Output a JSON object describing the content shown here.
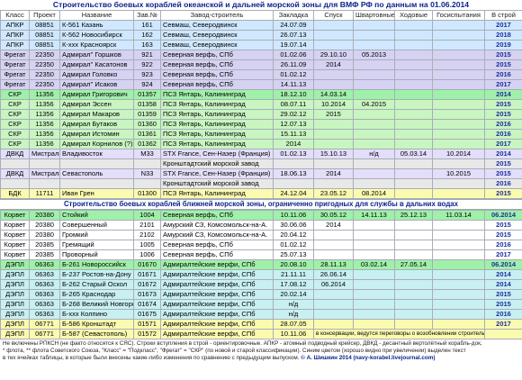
{
  "title": "Строительство боевых кораблей океанской и дальней морской зоны для ВМФ РФ по данным на 01.06.2014",
  "columns": [
    "Класс",
    "Проект",
    "Название",
    "Зав.№",
    "Завод-строитель",
    "Закладка",
    "Спуск",
    "Швартовные",
    "Ходовые",
    "Госиспытания",
    "В строй"
  ],
  "rows1": [
    {
      "style": "blue",
      "cells": [
        "АПКР",
        "08851",
        "К-561 Казань",
        "161",
        "Севмаш, Северодвинск",
        "24.07.09",
        "",
        "",
        "",
        "",
        "2017"
      ]
    },
    {
      "style": "blue",
      "cells": [
        "АПКР",
        "08851",
        "К-562 Новосибирск",
        "162",
        "Севмаш, Северодвинск",
        "26.07.13",
        "",
        "",
        "",
        "",
        "2018"
      ]
    },
    {
      "style": "blue",
      "cells": [
        "АПКР",
        "08851",
        "К-ххх Красноярск",
        "163",
        "Севмаш, Северодвинск",
        "19.07.14",
        "",
        "",
        "",
        "",
        "2019"
      ]
    },
    {
      "style": "purple",
      "cells": [
        "Фрегат",
        "22350",
        "Адмирал'' Горшков",
        "921",
        "Северная верфь, СПб",
        "01.02.06",
        "29.10.10",
        "05.2013",
        "",
        "",
        "2015"
      ]
    },
    {
      "style": "purple",
      "cells": [
        "Фрегат",
        "22350",
        "Адмирал'' Касатонов",
        "922",
        "Северная верфь, СПб",
        "26.11.09",
        "2014",
        "",
        "",
        "",
        "2015"
      ]
    },
    {
      "style": "purple",
      "cells": [
        "Фрегат",
        "22350",
        "Адмирал Головко",
        "923",
        "Северная верфь, СПб",
        "01.02.12",
        "",
        "",
        "",
        "",
        "2016"
      ]
    },
    {
      "style": "purple",
      "cells": [
        "Фрегат",
        "22350",
        "Адмирал'' Исаков",
        "924",
        "Северная верфь, СПб",
        "14.11.13",
        "",
        "",
        "",
        "",
        "2017"
      ]
    },
    {
      "style": "green",
      "cells": [
        "СКР",
        "11356",
        "Адмирал Григорович",
        "01357",
        "ПСЗ Янтарь, Калининград",
        "18.12.10",
        "14.03.14",
        "",
        "",
        "",
        "2014"
      ]
    },
    {
      "style": "greenlt",
      "cells": [
        "СКР",
        "11356",
        "Адмирал Эссен",
        "01358",
        "ПСЗ Янтарь, Калининград",
        "08.07.11",
        "10.2014",
        "04.2015",
        "",
        "",
        "2015"
      ]
    },
    {
      "style": "greenlt",
      "cells": [
        "СКР",
        "11356",
        "Адмирал Макаров",
        "01359",
        "ПСЗ Янтарь, Калининград",
        "29.02.12",
        "2015",
        "",
        "",
        "",
        "2015"
      ]
    },
    {
      "style": "greenlt",
      "cells": [
        "СКР",
        "11356",
        "Адмирал Бутаков",
        "01360",
        "ПСЗ Янтарь, Калининград",
        "12.07.13",
        "",
        "",
        "",
        "",
        "2016"
      ]
    },
    {
      "style": "greenlt",
      "cells": [
        "СКР",
        "11356",
        "Адмирал Истомин",
        "01361",
        "ПСЗ Янтарь, Калининград",
        "15.11.13",
        "",
        "",
        "",
        "",
        "2016"
      ]
    },
    {
      "style": "greenlt",
      "cells": [
        "СКР",
        "11356",
        "Адмирал Корнилов (?)",
        "01362",
        "ПСЗ Янтарь, Калининград",
        "2014",
        "",
        "",
        "",
        "",
        "2017"
      ]
    },
    {
      "style": "lilac",
      "cells": [
        "ДВКД",
        "Мистраль",
        "Владивосток",
        "М33",
        "STX France, Сен-Назер (Франция)",
        "01.02.13",
        "15.10.13",
        "н/д",
        "05.03.14",
        "10.2014",
        "2014"
      ]
    },
    {
      "style": "gray",
      "cells": [
        "",
        "",
        "",
        "",
        "Кронштадтский морской завод",
        "",
        "",
        "",
        "",
        "",
        "2015"
      ]
    },
    {
      "style": "lilac",
      "cells": [
        "ДВКД",
        "Мистраль",
        "Севастополь",
        "N33",
        "STX France, Сен-Назер (Франция)",
        "18.06.13",
        "2014",
        "",
        "",
        "10.2015",
        "2015"
      ]
    },
    {
      "style": "gray",
      "cells": [
        "",
        "",
        "",
        "",
        "Кронштадтский морской завод",
        "",
        "",
        "",
        "",
        "",
        "2016"
      ]
    },
    {
      "style": "yellow",
      "cells": [
        "БДК",
        "11711",
        "Иван Грен",
        "01300",
        "ПСЗ Янтарь, Калининград",
        "24.12.04",
        "23.05.12",
        "08.2014",
        "",
        "",
        "2015"
      ]
    }
  ],
  "section2_title": "Строительство боевых кораблей ближней морской зоны, ограниченно пригодных для службы в дальних водах",
  "rows2": [
    {
      "style": "green",
      "cells": [
        "Корвет",
        "20380",
        "Стойкий",
        "1004",
        "Северная верфь, СПб",
        "10.11.06",
        "30.05.12",
        "14.11.13",
        "25.12.13",
        "11.03.14",
        "06.2014"
      ]
    },
    {
      "style": "white",
      "cells": [
        "Корвет",
        "20380",
        "Совершенный",
        "2101",
        "Амурский СЗ, Комсомольск-на-А.",
        "30.06.06",
        "2014",
        "",
        "",
        "",
        "2015"
      ]
    },
    {
      "style": "white",
      "cells": [
        "Корвет",
        "20380",
        "Громкий",
        "2102",
        "Амурский СЗ, Комсомольск-на-А.",
        "20.04.12",
        "",
        "",
        "",
        "",
        "2015"
      ]
    },
    {
      "style": "white",
      "cells": [
        "Корвет",
        "20385",
        "Гремящий",
        "1005",
        "Северная верфь, СПб",
        "01.02.12",
        "",
        "",
        "",
        "",
        "2016"
      ]
    },
    {
      "style": "white",
      "cells": [
        "Корвет",
        "20385",
        "Проворный",
        "1006",
        "Северная верфь, СПб",
        "25.07.13",
        "",
        "",
        "",
        "",
        "2017"
      ]
    },
    {
      "style": "green",
      "cells": [
        "ДЭПЛ",
        "06363",
        "Б-261 Новороссийск",
        "01670",
        "Адмиралтейские верфи, СПб",
        "20.08.10",
        "28.11.13",
        "03.02.14",
        "27.05.14",
        "",
        "06.2014"
      ]
    },
    {
      "style": "cyan",
      "cells": [
        "ДЭПЛ",
        "06363",
        "Б-237 Ростов-на-Дону",
        "01671",
        "Адмиралтейские верфи, СПб",
        "21.11.11",
        "26.06.14",
        "",
        "",
        "",
        "2014"
      ]
    },
    {
      "style": "cyan",
      "cells": [
        "ДЭПЛ",
        "06363",
        "Б-262 Старый Оскол",
        "01672",
        "Адмиралтейские верфи, СПб",
        "17.08.12",
        "06.2014",
        "",
        "",
        "",
        "2014"
      ]
    },
    {
      "style": "cyan",
      "cells": [
        "ДЭПЛ",
        "06363",
        "Б-265 Краснодар",
        "01673",
        "Адмиралтейские верфи, СПб",
        "20.02.14",
        "",
        "",
        "",
        "",
        "2015"
      ]
    },
    {
      "style": "cyan",
      "cells": [
        "ДЭПЛ",
        "06363",
        "Б-268 Великий Новгород",
        "01674",
        "Адмиралтейские верфи, СПб",
        "н/д",
        "",
        "",
        "",
        "",
        "2015"
      ]
    },
    {
      "style": "cyan",
      "cells": [
        "ДЭПЛ",
        "06363",
        "Б-ххх Колпино",
        "01675",
        "Адмиралтейские верфи, СПб",
        "н/д",
        "",
        "",
        "",
        "",
        "2016"
      ]
    },
    {
      "style": "yellow",
      "cells": [
        "ДЭПЛ",
        "06771",
        "Б-586 Кронштадт",
        "01571",
        "Адмиралтейские верфи, СПб",
        "28.07.05",
        "",
        "",
        "",
        "",
        "2017"
      ]
    },
    {
      "style": "yellow",
      "cells": [
        "ДЭПЛ",
        "06771",
        "Б-587 (Севастополь)",
        "01572",
        "Адмиралтейские верфи, СПб",
        "10.11.06",
        "в консервации, ведутся переговоры о возобновлении строительства",
        "",
        "",
        "",
        ""
      ]
    }
  ],
  "footer": {
    "line1": "Не включены РПКСН (не факто относятся к СЯС). Строки вступления в строй - ориентировочные. АПКР - атомный подводный крейсер, ДВКД - десантный вертолётный корабль-док,",
    "line2": "* флота, ** флота Советского Союза, \"Класс\" = \"Подкласс\", \"Фрегат\" = \"СКР\" (по новой и старой классификации). Синим цветом (хорошо видно при увеличении) выделен текст",
    "line3": "в тех ячейках таблицы, в которые были внесены какие-либо изменения по сравнению с предыдущим выпуском.",
    "copyright": "© А. Шишкин 2014 (navy-korabel.livejournal.com)"
  }
}
